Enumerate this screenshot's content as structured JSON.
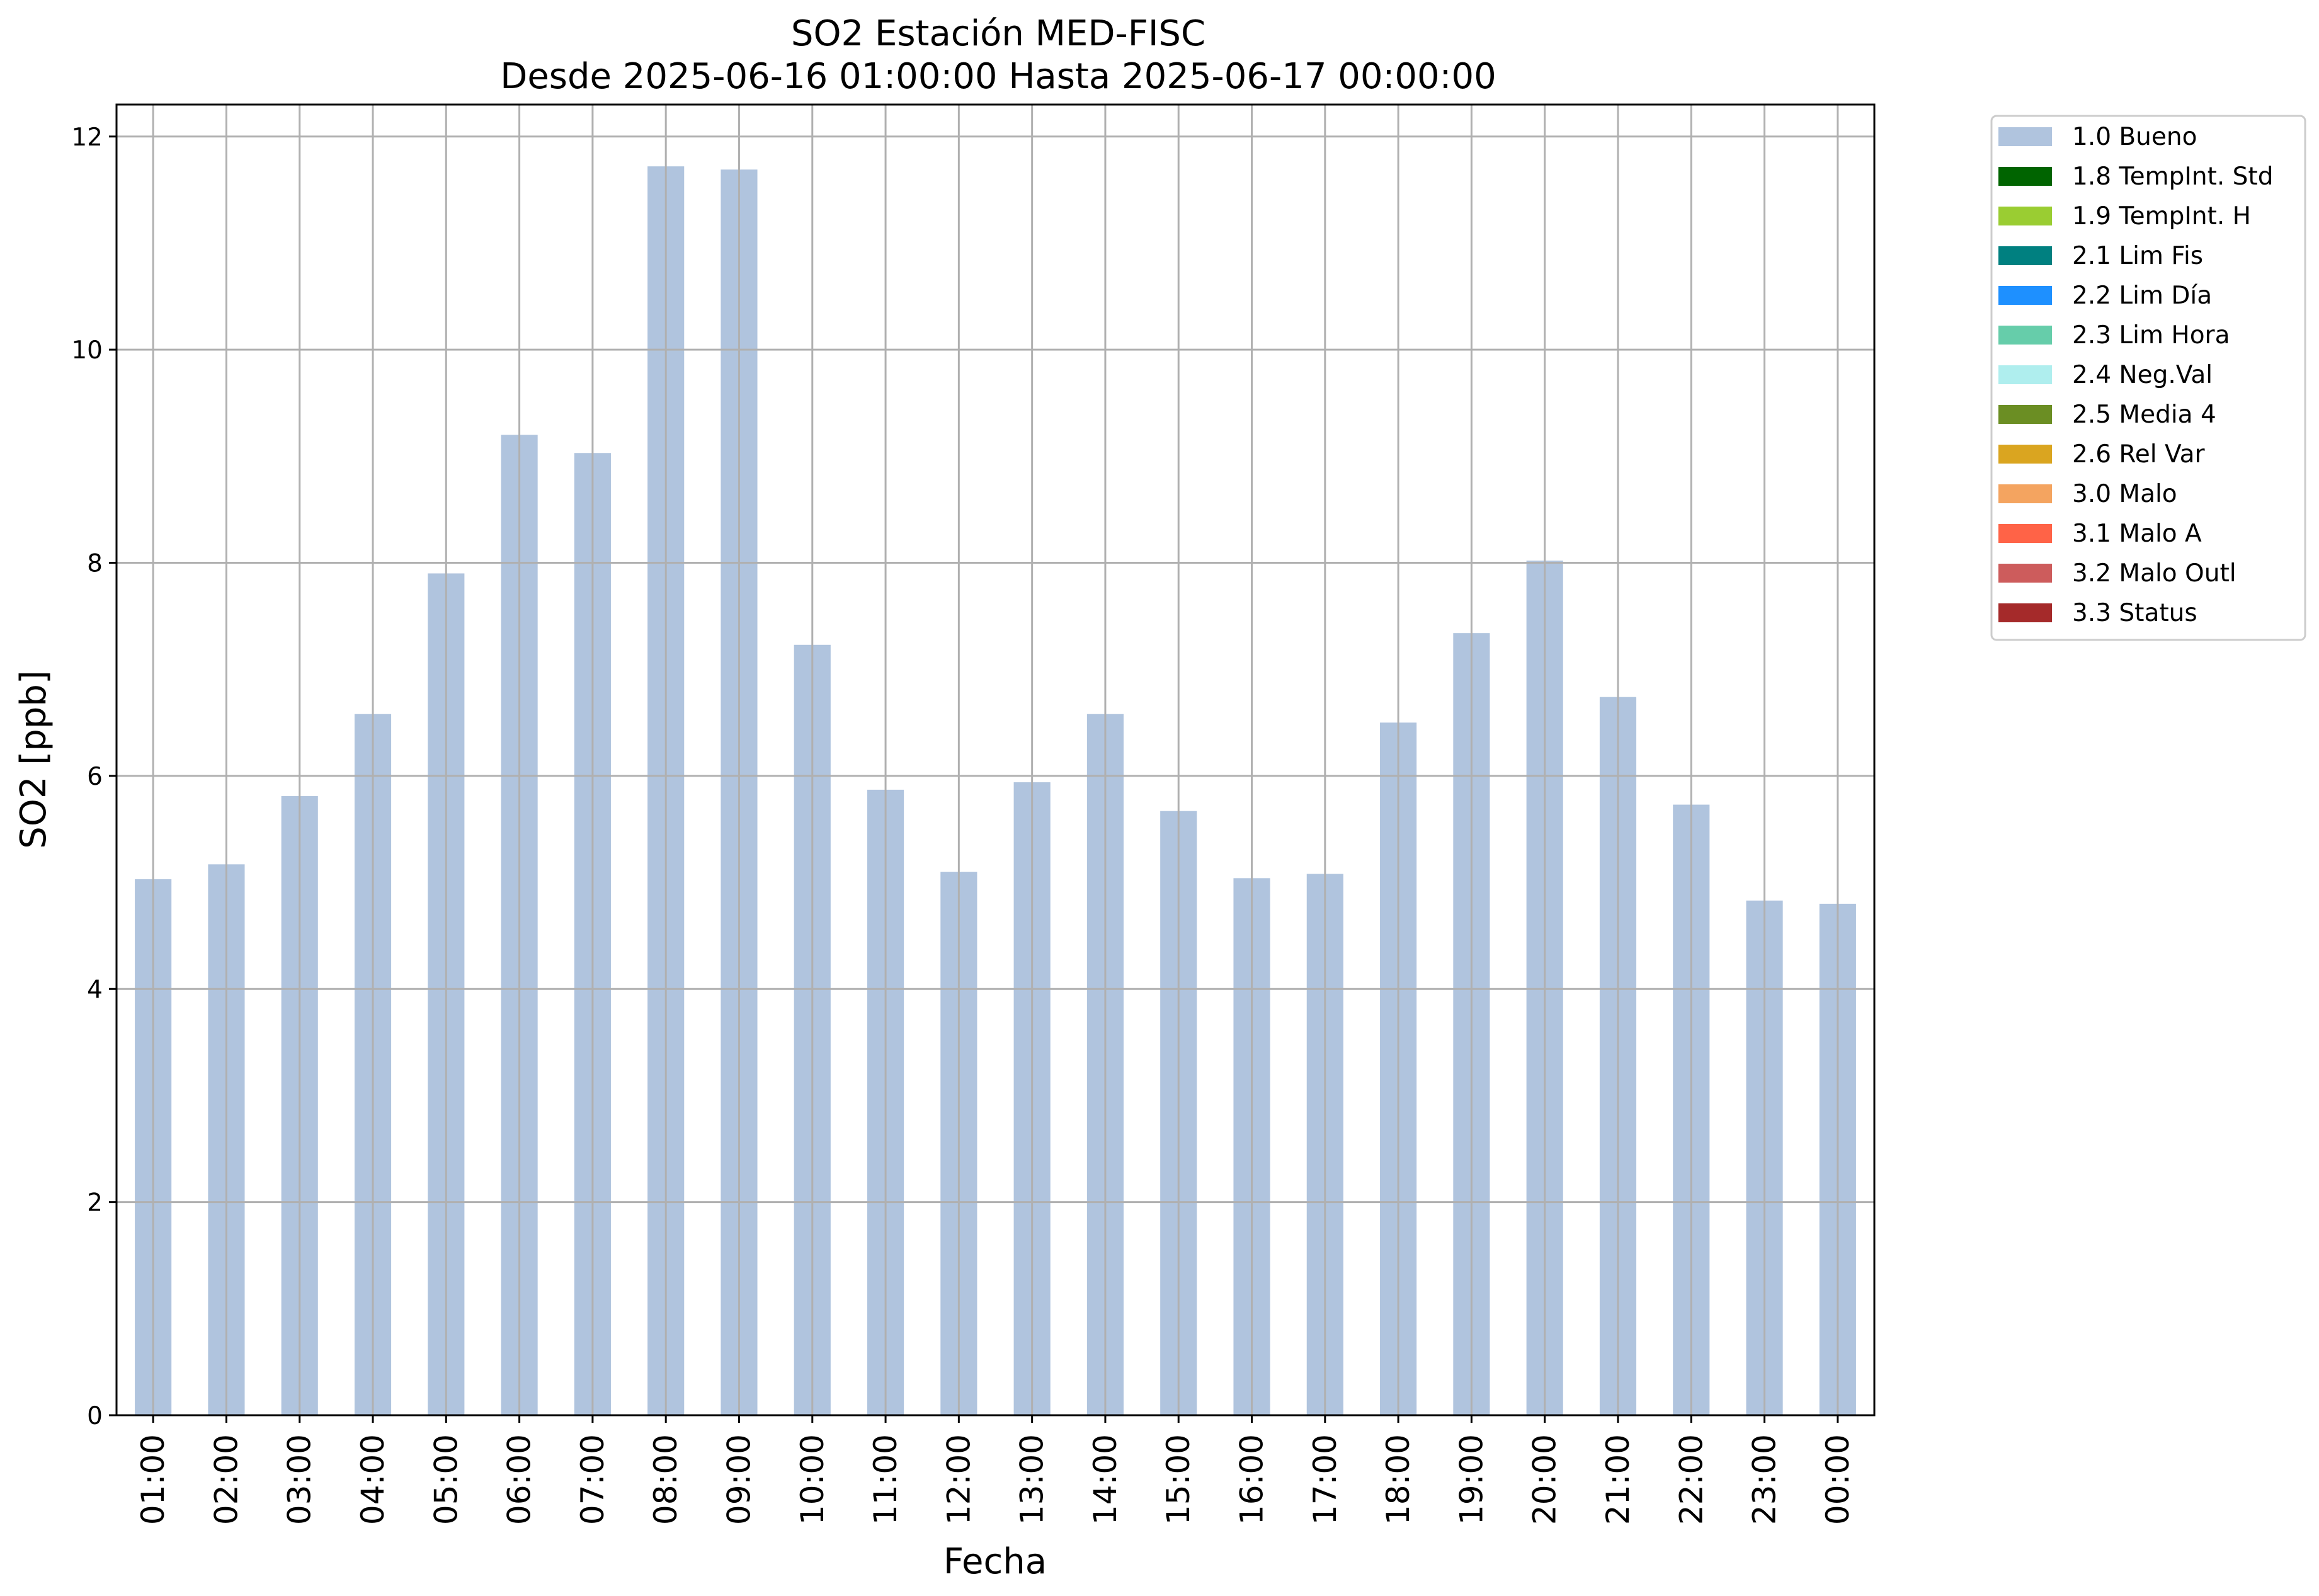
{
  "chart_data": {
    "type": "bar",
    "title": "SO2 Estación MED-FISC",
    "subtitle": "Desde 2025-06-16 01:00:00 Hasta 2025-06-17 00:00:00",
    "xlabel": "Fecha",
    "ylabel": "SO2 [ppb]",
    "ylim": [
      0,
      12.3
    ],
    "yticks": [
      "0",
      "2",
      "4",
      "6",
      "8",
      "10",
      "12"
    ],
    "grid": true,
    "legend_position": "outside-right-top",
    "categories": [
      "01:00",
      "02:00",
      "03:00",
      "04:00",
      "05:00",
      "06:00",
      "07:00",
      "08:00",
      "09:00",
      "10:00",
      "11:00",
      "12:00",
      "13:00",
      "14:00",
      "15:00",
      "16:00",
      "17:00",
      "18:00",
      "19:00",
      "20:00",
      "21:00",
      "22:00",
      "23:00",
      "00:00"
    ],
    "series": [
      {
        "name": "1.0 Bueno",
        "color": "#b0c4de",
        "values": [
          5.03,
          5.17,
          5.81,
          6.58,
          7.9,
          9.2,
          9.03,
          11.72,
          11.69,
          7.23,
          5.87,
          5.1,
          5.94,
          6.58,
          5.67,
          5.04,
          5.08,
          6.5,
          7.34,
          8.02,
          6.74,
          5.73,
          4.83,
          4.8
        ]
      }
    ],
    "legend": [
      {
        "label": "1.0 Bueno",
        "color": "#b0c4de"
      },
      {
        "label": "1.8 TempInt. Std",
        "color": "#006400"
      },
      {
        "label": "1.9 TempInt. H",
        "color": "#9acd32"
      },
      {
        "label": "2.1 Lim Fis",
        "color": "#008080"
      },
      {
        "label": "2.2 Lim Día",
        "color": "#1e90ff"
      },
      {
        "label": "2.3 Lim Hora",
        "color": "#66cdaa"
      },
      {
        "label": "2.4 Neg.Val",
        "color": "#afeeee"
      },
      {
        "label": "2.5 Media 4",
        "color": "#6b8e23"
      },
      {
        "label": "2.6 Rel Var",
        "color": "#daa520"
      },
      {
        "label": "3.0 Malo",
        "color": "#f4a460"
      },
      {
        "label": "3.1 Malo A",
        "color": "#ff6347"
      },
      {
        "label": "3.2 Malo Outl",
        "color": "#cd5c5c"
      },
      {
        "label": "3.3 Status",
        "color": "#a52a2a"
      }
    ]
  }
}
